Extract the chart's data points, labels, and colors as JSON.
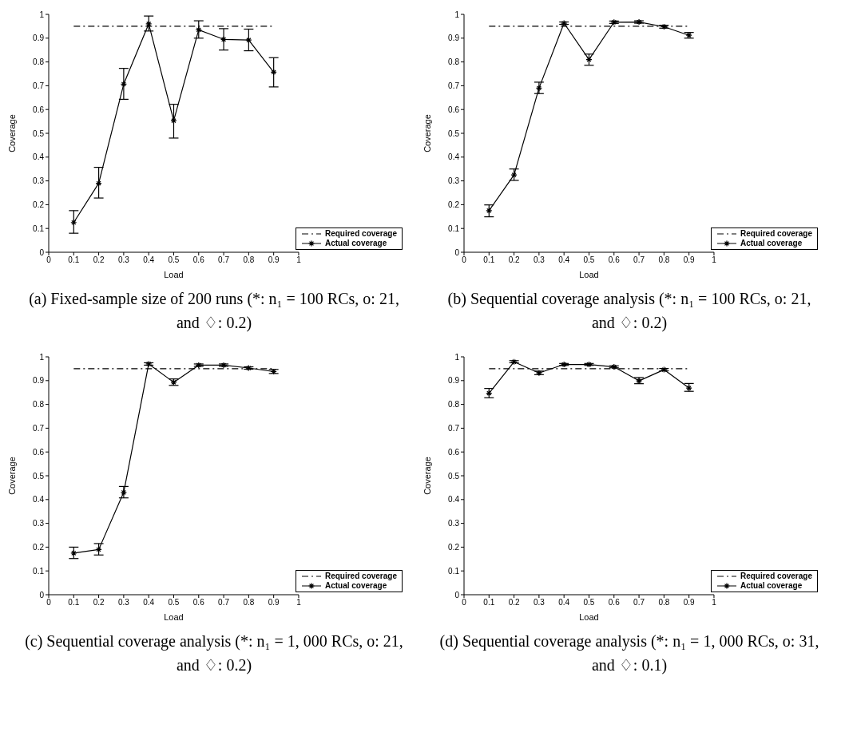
{
  "chart_data": [
    {
      "type": "line",
      "title": "(a) Fixed-sample size of 200 runs (*: n₁ = 100 RCs, o: 21, and ♢: 0.2)",
      "xlabel": "Load",
      "ylabel": "Coverage",
      "xlim": [
        0,
        1
      ],
      "ylim": [
        0,
        1
      ],
      "xticks": [
        0,
        0.1,
        0.2,
        0.3,
        0.4,
        0.5,
        0.6,
        0.7,
        0.8,
        0.9,
        1
      ],
      "yticks": [
        0,
        0.1,
        0.2,
        0.3,
        0.4,
        0.5,
        0.6,
        0.7,
        0.8,
        0.9,
        1
      ],
      "legend": "bottom right",
      "series": [
        {
          "name": "Required coverage",
          "color": "#000000",
          "x": [
            0.1,
            0.9
          ],
          "values": [
            0.95,
            0.95
          ],
          "line_style": "dashed",
          "marker": "none"
        },
        {
          "name": "Actual coverage",
          "color": "#000000",
          "x": [
            0.1,
            0.2,
            0.3,
            0.4,
            0.5,
            0.6,
            0.7,
            0.8,
            0.9
          ],
          "values": [
            0.125,
            0.29,
            0.707,
            0.96,
            0.553,
            0.935,
            0.895,
            0.892,
            0.757
          ],
          "errors": [
            [
              0.08,
              0.175
            ],
            [
              0.228,
              0.357
            ],
            [
              0.643,
              0.773
            ],
            [
              0.93,
              0.993
            ],
            [
              0.48,
              0.622
            ],
            [
              0.9,
              0.973
            ],
            [
              0.85,
              0.94
            ],
            [
              0.847,
              0.938
            ],
            [
              0.695,
              0.818
            ]
          ],
          "line_style": "solid",
          "marker": "cross"
        }
      ]
    },
    {
      "type": "line",
      "title": "(b) Sequential coverage analysis (*: n₁ = 100 RCs, o: 21, and ♢: 0.2)",
      "xlabel": "Load",
      "ylabel": "Coverage",
      "xlim": [
        0,
        1
      ],
      "ylim": [
        0,
        1
      ],
      "xticks": [
        0,
        0.1,
        0.2,
        0.3,
        0.4,
        0.5,
        0.6,
        0.7,
        0.8,
        0.9,
        1
      ],
      "yticks": [
        0,
        0.1,
        0.2,
        0.3,
        0.4,
        0.5,
        0.6,
        0.7,
        0.8,
        0.9,
        1
      ],
      "legend": "bottom right",
      "series": [
        {
          "name": "Required coverage",
          "color": "#000000",
          "x": [
            0.1,
            0.9
          ],
          "values": [
            0.95,
            0.95
          ],
          "line_style": "dashed",
          "marker": "none"
        },
        {
          "name": "Actual coverage",
          "color": "#000000",
          "x": [
            0.1,
            0.2,
            0.3,
            0.4,
            0.5,
            0.6,
            0.7,
            0.8,
            0.9
          ],
          "values": [
            0.175,
            0.325,
            0.69,
            0.963,
            0.81,
            0.967,
            0.968,
            0.948,
            0.912
          ],
          "errors": [
            [
              0.149,
              0.199
            ],
            [
              0.302,
              0.35
            ],
            [
              0.667,
              0.715
            ],
            [
              0.958,
              0.968
            ],
            [
              0.786,
              0.833
            ],
            [
              0.962,
              0.972
            ],
            [
              0.963,
              0.973
            ],
            [
              0.942,
              0.954
            ],
            [
              0.9,
              0.924
            ]
          ],
          "line_style": "solid",
          "marker": "cross"
        }
      ]
    },
    {
      "type": "line",
      "title": "(c) Sequential coverage analysis (*: n₁ = 1, 000 RCs, o: 21, and ♢: 0.2)",
      "xlabel": "Load",
      "ylabel": "Coverage",
      "xlim": [
        0,
        1
      ],
      "ylim": [
        0,
        1
      ],
      "xticks": [
        0,
        0.1,
        0.2,
        0.3,
        0.4,
        0.5,
        0.6,
        0.7,
        0.8,
        0.9,
        1
      ],
      "yticks": [
        0,
        0.1,
        0.2,
        0.3,
        0.4,
        0.5,
        0.6,
        0.7,
        0.8,
        0.9,
        1
      ],
      "legend": "bottom right",
      "series": [
        {
          "name": "Required coverage",
          "color": "#000000",
          "x": [
            0.1,
            0.9
          ],
          "values": [
            0.95,
            0.95
          ],
          "line_style": "dashed",
          "marker": "none"
        },
        {
          "name": "Actual coverage",
          "color": "#000000",
          "x": [
            0.1,
            0.2,
            0.3,
            0.4,
            0.5,
            0.6,
            0.7,
            0.8,
            0.9
          ],
          "values": [
            0.175,
            0.19,
            0.43,
            0.97,
            0.893,
            0.965,
            0.965,
            0.953,
            0.938
          ],
          "errors": [
            [
              0.152,
              0.2
            ],
            [
              0.167,
              0.215
            ],
            [
              0.407,
              0.455
            ],
            [
              0.965,
              0.975
            ],
            [
              0.88,
              0.907
            ],
            [
              0.96,
              0.97
            ],
            [
              0.96,
              0.97
            ],
            [
              0.948,
              0.958
            ],
            [
              0.93,
              0.947
            ]
          ],
          "line_style": "solid",
          "marker": "cross"
        }
      ]
    },
    {
      "type": "line",
      "title": "(d) Sequential coverage analysis (*: n₁ = 1, 000 RCs, o: 31, and ♢: 0.1)",
      "xlabel": "Load",
      "ylabel": "Coverage",
      "xlim": [
        0,
        1
      ],
      "ylim": [
        0,
        1
      ],
      "xticks": [
        0,
        0.1,
        0.2,
        0.3,
        0.4,
        0.5,
        0.6,
        0.7,
        0.8,
        0.9,
        1
      ],
      "yticks": [
        0,
        0.1,
        0.2,
        0.3,
        0.4,
        0.5,
        0.6,
        0.7,
        0.8,
        0.9,
        1
      ],
      "legend": "bottom right",
      "series": [
        {
          "name": "Required coverage",
          "color": "#000000",
          "x": [
            0.1,
            0.9
          ],
          "values": [
            0.95,
            0.95
          ],
          "line_style": "dashed",
          "marker": "none"
        },
        {
          "name": "Actual coverage",
          "color": "#000000",
          "x": [
            0.1,
            0.2,
            0.3,
            0.4,
            0.5,
            0.6,
            0.7,
            0.8,
            0.9
          ],
          "values": [
            0.847,
            0.979,
            0.932,
            0.968,
            0.968,
            0.958,
            0.899,
            0.946,
            0.869
          ],
          "errors": [
            [
              0.828,
              0.867
            ],
            [
              0.975,
              0.984
            ],
            [
              0.925,
              0.94
            ],
            [
              0.964,
              0.972
            ],
            [
              0.964,
              0.972
            ],
            [
              0.954,
              0.962
            ],
            [
              0.887,
              0.913
            ],
            [
              0.941,
              0.951
            ],
            [
              0.855,
              0.888
            ]
          ],
          "line_style": "solid",
          "marker": "cross"
        }
      ]
    }
  ]
}
